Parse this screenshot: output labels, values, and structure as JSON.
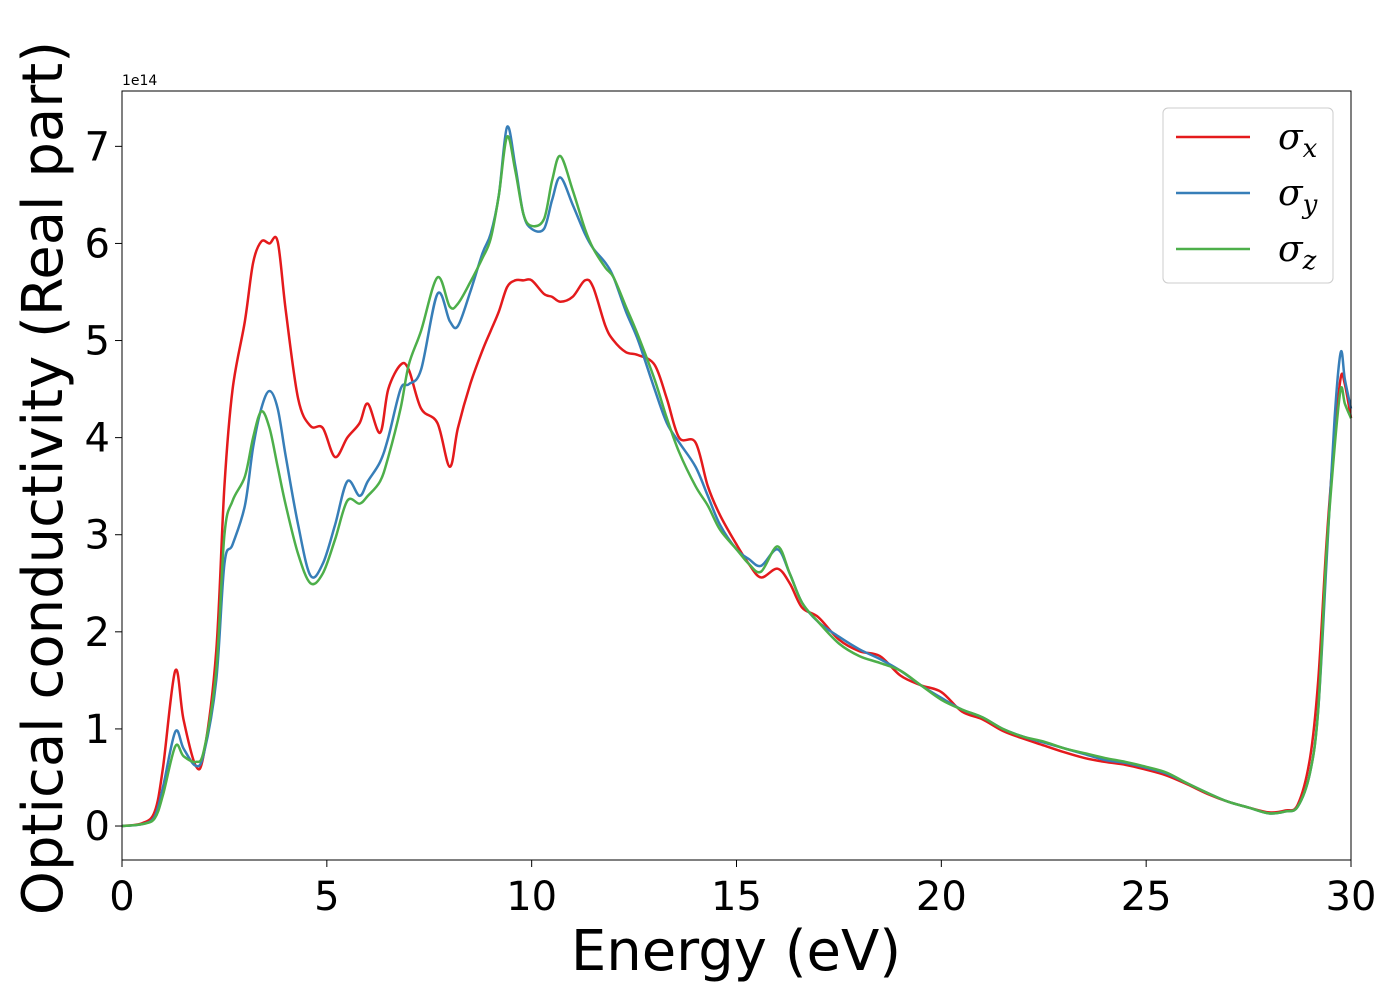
{
  "chart_data": {
    "type": "line",
    "xlabel": "Energy (eV)",
    "ylabel": "Optical conductivity (Real part)",
    "y_offset_label": "1e14",
    "xlim": [
      0,
      30
    ],
    "ylim": [
      -0.35,
      7.57
    ],
    "x_ticks": [
      0,
      5,
      10,
      15,
      20,
      25,
      30
    ],
    "y_ticks": [
      0,
      1,
      2,
      3,
      4,
      5,
      6,
      7
    ],
    "grid": false,
    "legend_position": "top-right",
    "x": [
      0,
      0.5,
      0.8,
      1.0,
      1.3,
      1.5,
      1.8,
      2.0,
      2.3,
      2.5,
      2.7,
      3.0,
      3.2,
      3.4,
      3.6,
      3.8,
      4.0,
      4.3,
      4.6,
      4.9,
      5.2,
      5.5,
      5.8,
      6.0,
      6.3,
      6.5,
      6.8,
      7.0,
      7.3,
      7.7,
      8.0,
      8.2,
      8.5,
      8.8,
      9.0,
      9.2,
      9.4,
      9.6,
      9.8,
      10.0,
      10.3,
      10.5,
      10.7,
      11.0,
      11.3,
      11.5,
      11.8,
      12.0,
      12.3,
      12.6,
      13.0,
      13.3,
      13.6,
      14.0,
      14.3,
      14.6,
      15.0,
      15.3,
      15.6,
      16.0,
      16.3,
      16.6,
      17.0,
      17.5,
      18.0,
      18.5,
      19.0,
      19.5,
      20.0,
      20.5,
      21.0,
      21.5,
      22.0,
      22.5,
      23.0,
      23.5,
      24.0,
      24.5,
      25.0,
      25.5,
      26.0,
      26.5,
      27.0,
      27.5,
      28.0,
      28.4,
      28.7,
      29.0,
      29.2,
      29.4,
      29.6,
      29.75,
      29.85,
      30.0
    ],
    "series": [
      {
        "name": "σx",
        "color": "#e41a1c",
        "values": [
          0.0,
          0.03,
          0.15,
          0.6,
          1.6,
          1.1,
          0.62,
          0.75,
          1.8,
          3.5,
          4.5,
          5.2,
          5.8,
          6.02,
          6.0,
          6.02,
          5.3,
          4.4,
          4.12,
          4.1,
          3.8,
          4.0,
          4.15,
          4.35,
          4.05,
          4.5,
          4.75,
          4.7,
          4.3,
          4.15,
          3.7,
          4.1,
          4.55,
          4.9,
          5.1,
          5.3,
          5.55,
          5.62,
          5.62,
          5.62,
          5.48,
          5.45,
          5.4,
          5.45,
          5.62,
          5.55,
          5.15,
          5.0,
          4.88,
          4.85,
          4.75,
          4.4,
          4.0,
          3.95,
          3.5,
          3.2,
          2.9,
          2.7,
          2.56,
          2.65,
          2.5,
          2.25,
          2.15,
          1.92,
          1.8,
          1.75,
          1.55,
          1.45,
          1.38,
          1.18,
          1.1,
          0.98,
          0.9,
          0.83,
          0.76,
          0.7,
          0.66,
          0.63,
          0.58,
          0.52,
          0.43,
          0.33,
          0.25,
          0.19,
          0.14,
          0.16,
          0.22,
          0.7,
          1.5,
          2.9,
          4.0,
          4.62,
          4.55,
          4.2
        ]
      },
      {
        "name": "σy",
        "color": "#377eb8",
        "values": [
          0.0,
          0.02,
          0.1,
          0.4,
          0.97,
          0.8,
          0.62,
          0.75,
          1.5,
          2.7,
          2.9,
          3.3,
          3.9,
          4.3,
          4.48,
          4.3,
          3.8,
          3.1,
          2.58,
          2.7,
          3.1,
          3.55,
          3.4,
          3.55,
          3.75,
          4.0,
          4.5,
          4.55,
          4.7,
          5.48,
          5.2,
          5.15,
          5.5,
          5.9,
          6.1,
          6.5,
          7.2,
          6.8,
          6.3,
          6.15,
          6.15,
          6.45,
          6.68,
          6.4,
          6.1,
          5.95,
          5.8,
          5.65,
          5.3,
          5.0,
          4.5,
          4.15,
          3.95,
          3.7,
          3.4,
          3.1,
          2.85,
          2.75,
          2.68,
          2.85,
          2.6,
          2.3,
          2.1,
          1.95,
          1.82,
          1.72,
          1.6,
          1.45,
          1.32,
          1.2,
          1.12,
          1.0,
          0.92,
          0.86,
          0.8,
          0.74,
          0.68,
          0.65,
          0.6,
          0.54,
          0.44,
          0.34,
          0.25,
          0.19,
          0.13,
          0.15,
          0.2,
          0.55,
          1.2,
          2.7,
          4.2,
          4.88,
          4.6,
          4.3
        ]
      },
      {
        "name": "σz",
        "color": "#4daf4a",
        "values": [
          0.0,
          0.02,
          0.08,
          0.32,
          0.82,
          0.72,
          0.66,
          0.78,
          1.6,
          3.0,
          3.35,
          3.6,
          4.0,
          4.27,
          4.1,
          3.7,
          3.3,
          2.8,
          2.5,
          2.6,
          2.95,
          3.35,
          3.32,
          3.4,
          3.55,
          3.8,
          4.3,
          4.75,
          5.1,
          5.65,
          5.35,
          5.38,
          5.6,
          5.85,
          6.05,
          6.5,
          7.1,
          6.75,
          6.3,
          6.18,
          6.25,
          6.65,
          6.9,
          6.55,
          6.15,
          5.95,
          5.75,
          5.65,
          5.35,
          5.05,
          4.6,
          4.2,
          3.85,
          3.5,
          3.3,
          3.05,
          2.85,
          2.7,
          2.62,
          2.88,
          2.6,
          2.3,
          2.1,
          1.88,
          1.75,
          1.68,
          1.6,
          1.45,
          1.3,
          1.2,
          1.12,
          1.0,
          0.92,
          0.87,
          0.8,
          0.75,
          0.7,
          0.66,
          0.61,
          0.55,
          0.44,
          0.34,
          0.25,
          0.19,
          0.13,
          0.15,
          0.2,
          0.55,
          1.2,
          2.8,
          3.9,
          4.5,
          4.35,
          4.2
        ]
      }
    ]
  }
}
